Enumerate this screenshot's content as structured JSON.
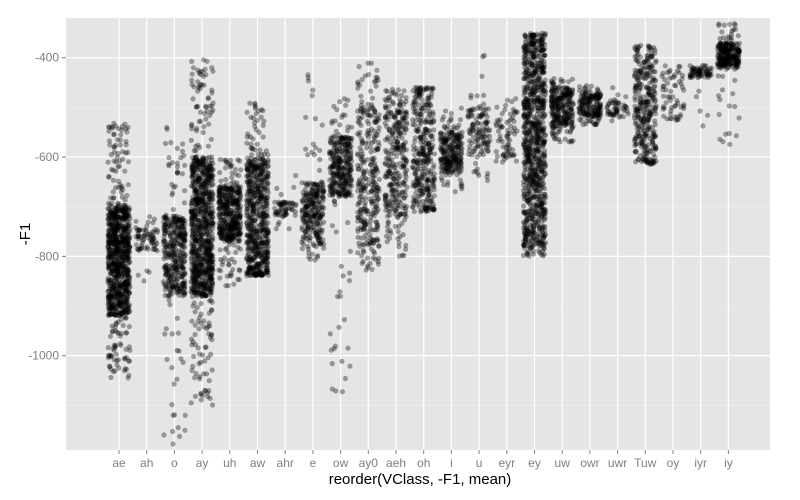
{
  "chart_data": {
    "type": "scatter",
    "xlabel": "reorder(VClass, -F1, mean)",
    "ylabel": "-F1",
    "categories": [
      "ae",
      "ah",
      "o",
      "ay",
      "uh",
      "aw",
      "ahr",
      "e",
      "ow",
      "ay0",
      "aeh",
      "oh",
      "i",
      "u",
      "eyr",
      "ey",
      "uw",
      "owr",
      "uwr",
      "Tuw",
      "oy",
      "iyr",
      "iy"
    ],
    "yticks": [
      -1000,
      -800,
      -600,
      -400
    ],
    "ylim": [
      -1190,
      -320
    ],
    "grid": true,
    "point_color": "#000000",
    "point_opacity": 0.35,
    "panel_color": "#e5e5e5",
    "series": [
      {
        "category": "ae",
        "n": 900,
        "core": [
          -920,
          -700
        ],
        "range": [
          -1045,
          -530
        ]
      },
      {
        "category": "ah",
        "n": 70,
        "core": [
          -790,
          -740
        ],
        "range": [
          -855,
          -720
        ]
      },
      {
        "category": "o",
        "n": 380,
        "core": [
          -880,
          -720
        ],
        "range": [
          -1180,
          -540
        ]
      },
      {
        "category": "ay",
        "n": 900,
        "core": [
          -880,
          -600
        ],
        "range": [
          -1100,
          -400
        ]
      },
      {
        "category": "uh",
        "n": 420,
        "core": [
          -770,
          -660
        ],
        "range": [
          -860,
          -600
        ]
      },
      {
        "category": "aw",
        "n": 600,
        "core": [
          -830,
          -600
        ],
        "range": [
          -840,
          -490
        ]
      },
      {
        "category": "ahr",
        "n": 60,
        "core": [
          -720,
          -690
        ],
        "range": [
          -745,
          -605
        ]
      },
      {
        "category": "e",
        "n": 260,
        "core": [
          -770,
          -650
        ],
        "range": [
          -810,
          -430
        ]
      },
      {
        "category": "ow",
        "n": 320,
        "core": [
          -680,
          -560
        ],
        "range": [
          -1075,
          -480
        ]
      },
      {
        "category": "ay0",
        "n": 300,
        "core": [
          -780,
          -500
        ],
        "range": [
          -830,
          -410
        ]
      },
      {
        "category": "aeh",
        "n": 300,
        "core": [
          -720,
          -490
        ],
        "range": [
          -800,
          -460
        ]
      },
      {
        "category": "oh",
        "n": 320,
        "core": [
          -700,
          -470
        ],
        "range": [
          -710,
          -460
        ]
      },
      {
        "category": "i",
        "n": 240,
        "core": [
          -630,
          -550
        ],
        "range": [
          -670,
          -500
        ]
      },
      {
        "category": "u",
        "n": 120,
        "core": [
          -600,
          -500
        ],
        "range": [
          -650,
          -390
        ]
      },
      {
        "category": "eyr",
        "n": 70,
        "core": [
          -600,
          -500
        ],
        "range": [
          -610,
          -480
        ]
      },
      {
        "category": "ey",
        "n": 900,
        "core": [
          -760,
          -380
        ],
        "range": [
          -800,
          -350
        ]
      },
      {
        "category": "uw",
        "n": 260,
        "core": [
          -540,
          -460
        ],
        "range": [
          -570,
          -440
        ]
      },
      {
        "category": "owr",
        "n": 180,
        "core": [
          -520,
          -470
        ],
        "range": [
          -535,
          -455
        ]
      },
      {
        "category": "uwr",
        "n": 50,
        "core": [
          -520,
          -490
        ],
        "range": [
          -530,
          -460
        ]
      },
      {
        "category": "Tuw",
        "n": 320,
        "core": [
          -600,
          -390
        ],
        "range": [
          -615,
          -375
        ]
      },
      {
        "category": "oy",
        "n": 60,
        "core": [
          -520,
          -420
        ],
        "range": [
          -530,
          -415
        ]
      },
      {
        "category": "iyr",
        "n": 70,
        "core": [
          -440,
          -420
        ],
        "range": [
          -540,
          -415
        ]
      },
      {
        "category": "iy",
        "n": 260,
        "core": [
          -420,
          -370
        ],
        "range": [
          -590,
          -330
        ]
      }
    ]
  }
}
